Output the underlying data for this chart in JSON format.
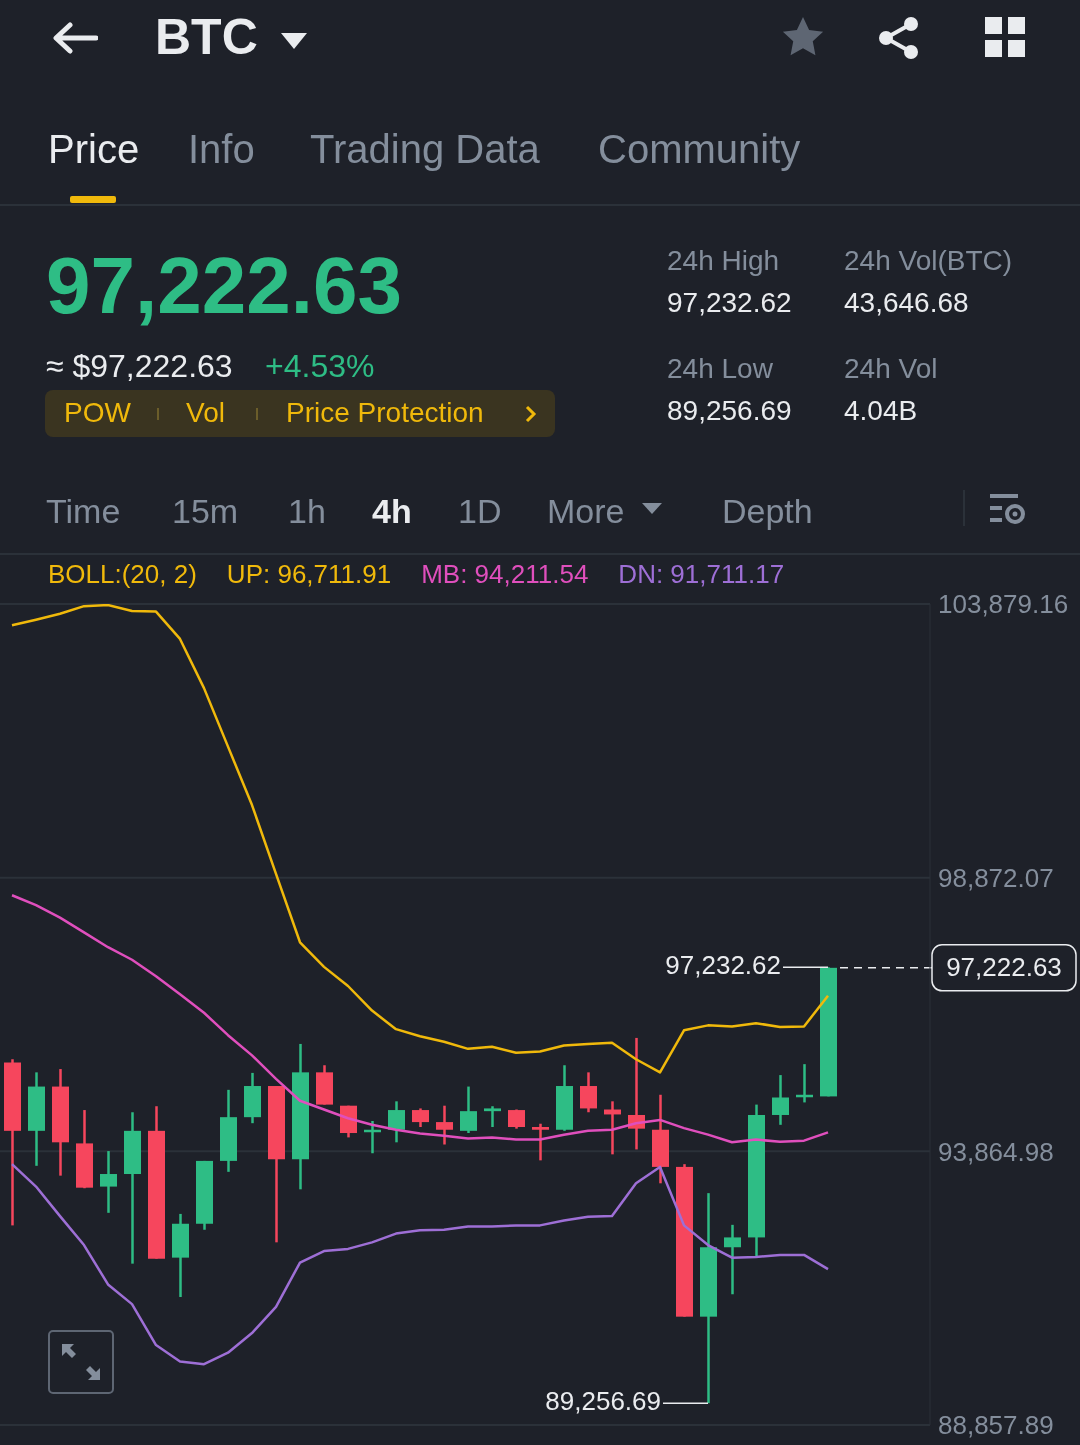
{
  "chart_data": {
    "type": "candlestick",
    "title": "BTC",
    "legend_title": "BOLL:(20, 2)",
    "legend": "top",
    "grid": "y",
    "categories": [
      null,
      null,
      null,
      null,
      null,
      null,
      null,
      null,
      null,
      null,
      null,
      null,
      null,
      null,
      null,
      null,
      null,
      null,
      null,
      null,
      null,
      null,
      null,
      null,
      null,
      null,
      null,
      null,
      null,
      null,
      null,
      null,
      null,
      null,
      null
    ],
    "ohlc": [
      [
        95490,
        95550,
        92510,
        94240
      ],
      [
        94240,
        95310,
        93600,
        95050
      ],
      [
        95050,
        95370,
        93420,
        94030
      ],
      [
        94010,
        94620,
        93190,
        93200
      ],
      [
        93220,
        93870,
        92740,
        93450
      ],
      [
        93450,
        94580,
        91810,
        94240
      ],
      [
        94240,
        94690,
        91900,
        91900
      ],
      [
        91920,
        92720,
        91200,
        92540
      ],
      [
        92540,
        93690,
        92430,
        93690
      ],
      [
        93690,
        94990,
        93490,
        94490
      ],
      [
        94490,
        95300,
        94380,
        95060
      ],
      [
        95060,
        95060,
        92200,
        93720
      ],
      [
        93720,
        95830,
        93170,
        95310
      ],
      [
        95310,
        95440,
        94720,
        94720
      ],
      [
        94700,
        94700,
        94120,
        94200
      ],
      [
        94220,
        94420,
        93830,
        94260
      ],
      [
        94260,
        94780,
        94030,
        94620
      ],
      [
        94620,
        94650,
        94310,
        94400
      ],
      [
        94400,
        94700,
        93990,
        94260
      ],
      [
        94240,
        95050,
        94200,
        94600
      ],
      [
        94600,
        94690,
        94310,
        94650
      ],
      [
        94620,
        94630,
        94280,
        94310
      ],
      [
        94310,
        94370,
        93700,
        94260
      ],
      [
        94260,
        95440,
        94240,
        95060
      ],
      [
        95060,
        95310,
        94580,
        94650
      ],
      [
        94630,
        94780,
        93810,
        94540
      ],
      [
        94530,
        95940,
        93900,
        94280
      ],
      [
        94260,
        94900,
        93280,
        93580
      ],
      [
        93580,
        93630,
        90840,
        90840
      ],
      [
        90840,
        93100,
        89256.69,
        92110
      ],
      [
        92110,
        92520,
        91250,
        92290
      ],
      [
        92290,
        94720,
        91920,
        94530
      ],
      [
        94530,
        95260,
        94350,
        94850
      ],
      [
        94880,
        95460,
        94760,
        94900
      ],
      [
        94870,
        97232.62,
        94870,
        97222.63
      ]
    ],
    "colors": [
      "#f6465d",
      "#2ebd85",
      "#f6465d",
      "#f6465d",
      "#2ebd85",
      "#2ebd85",
      "#f6465d",
      "#2ebd85",
      "#2ebd85",
      "#2ebd85",
      "#2ebd85",
      "#f6465d",
      "#2ebd85",
      "#f6465d",
      "#f6465d",
      "#2ebd85",
      "#2ebd85",
      "#f6465d",
      "#f6465d",
      "#2ebd85",
      "#2ebd85",
      "#f6465d",
      "#f6465d",
      "#2ebd85",
      "#f6465d",
      "#f6465d",
      "#f6465d",
      "#f6465d",
      "#f6465d",
      "#2ebd85",
      "#2ebd85",
      "#2ebd85",
      "#2ebd85",
      "#2ebd85",
      "#2ebd85"
    ],
    "series": [
      {
        "type": "line",
        "name": "UP: 96,711.91",
        "color": "#f0b90b",
        "values": [
          103490,
          103590,
          103700,
          103840,
          103860,
          103750,
          103740,
          103240,
          102340,
          101270,
          100200,
          98940,
          97690,
          97240,
          96890,
          96440,
          96100,
          95970,
          95870,
          95740,
          95780,
          95670,
          95690,
          95800,
          95830,
          95850,
          95550,
          95310,
          96080,
          96170,
          96150,
          96210,
          96140,
          96150,
          96711.91
        ]
      },
      {
        "type": "line",
        "name": "MB: 94,211.54",
        "color": "#e04fbd",
        "values": [
          98550,
          98370,
          98140,
          97870,
          97600,
          97370,
          97070,
          96740,
          96400,
          95990,
          95620,
          95190,
          94790,
          94630,
          94470,
          94350,
          94260,
          94190,
          94150,
          94100,
          94120,
          94080,
          94080,
          94170,
          94240,
          94260,
          94380,
          94440,
          94290,
          94170,
          94030,
          94080,
          94040,
          94060,
          94211.54
        ]
      },
      {
        "type": "line",
        "name": "DN: 91,711.17",
        "color": "#9e6fd6",
        "values": [
          93630,
          93220,
          92680,
          92150,
          91430,
          91070,
          90320,
          90020,
          89970,
          90180,
          90540,
          91020,
          91830,
          92040,
          92080,
          92200,
          92360,
          92420,
          92430,
          92490,
          92490,
          92510,
          92510,
          92600,
          92670,
          92680,
          93280,
          93580,
          92510,
          92150,
          91920,
          91930,
          91970,
          91970,
          91711.17
        ]
      }
    ],
    "ylim": [
      88857.89,
      103879.16
    ],
    "yticks": [
      {
        "value": 88857.89,
        "label": "88,857.89"
      },
      {
        "value": 93864.98,
        "label": "93,864.98"
      },
      {
        "value": 98872.07,
        "label": "98,872.07"
      },
      {
        "value": 103879.16,
        "label": "103,879.16"
      }
    ],
    "ref_lines": [
      {
        "axis": "y",
        "value": 97222.63,
        "label": "97,222.63",
        "line_style": "dashed",
        "color": "#eaecef"
      }
    ],
    "annotations": [
      "Price",
      "Info",
      "Trading Data",
      "Community",
      "97,222.63",
      "≈ $97,222.63",
      "+4.53%",
      "POW",
      "Vol",
      "Price Protection",
      "24h High",
      "97,232.62",
      "24h Vol(BTC)",
      "43,646.68",
      "24h Low",
      "89,256.69",
      "24h Vol",
      "4.04B",
      "Time",
      "15m",
      "1h",
      "4h",
      "1D",
      "More",
      "Depth",
      "97,232.62",
      "89,256.69"
    ]
  }
}
